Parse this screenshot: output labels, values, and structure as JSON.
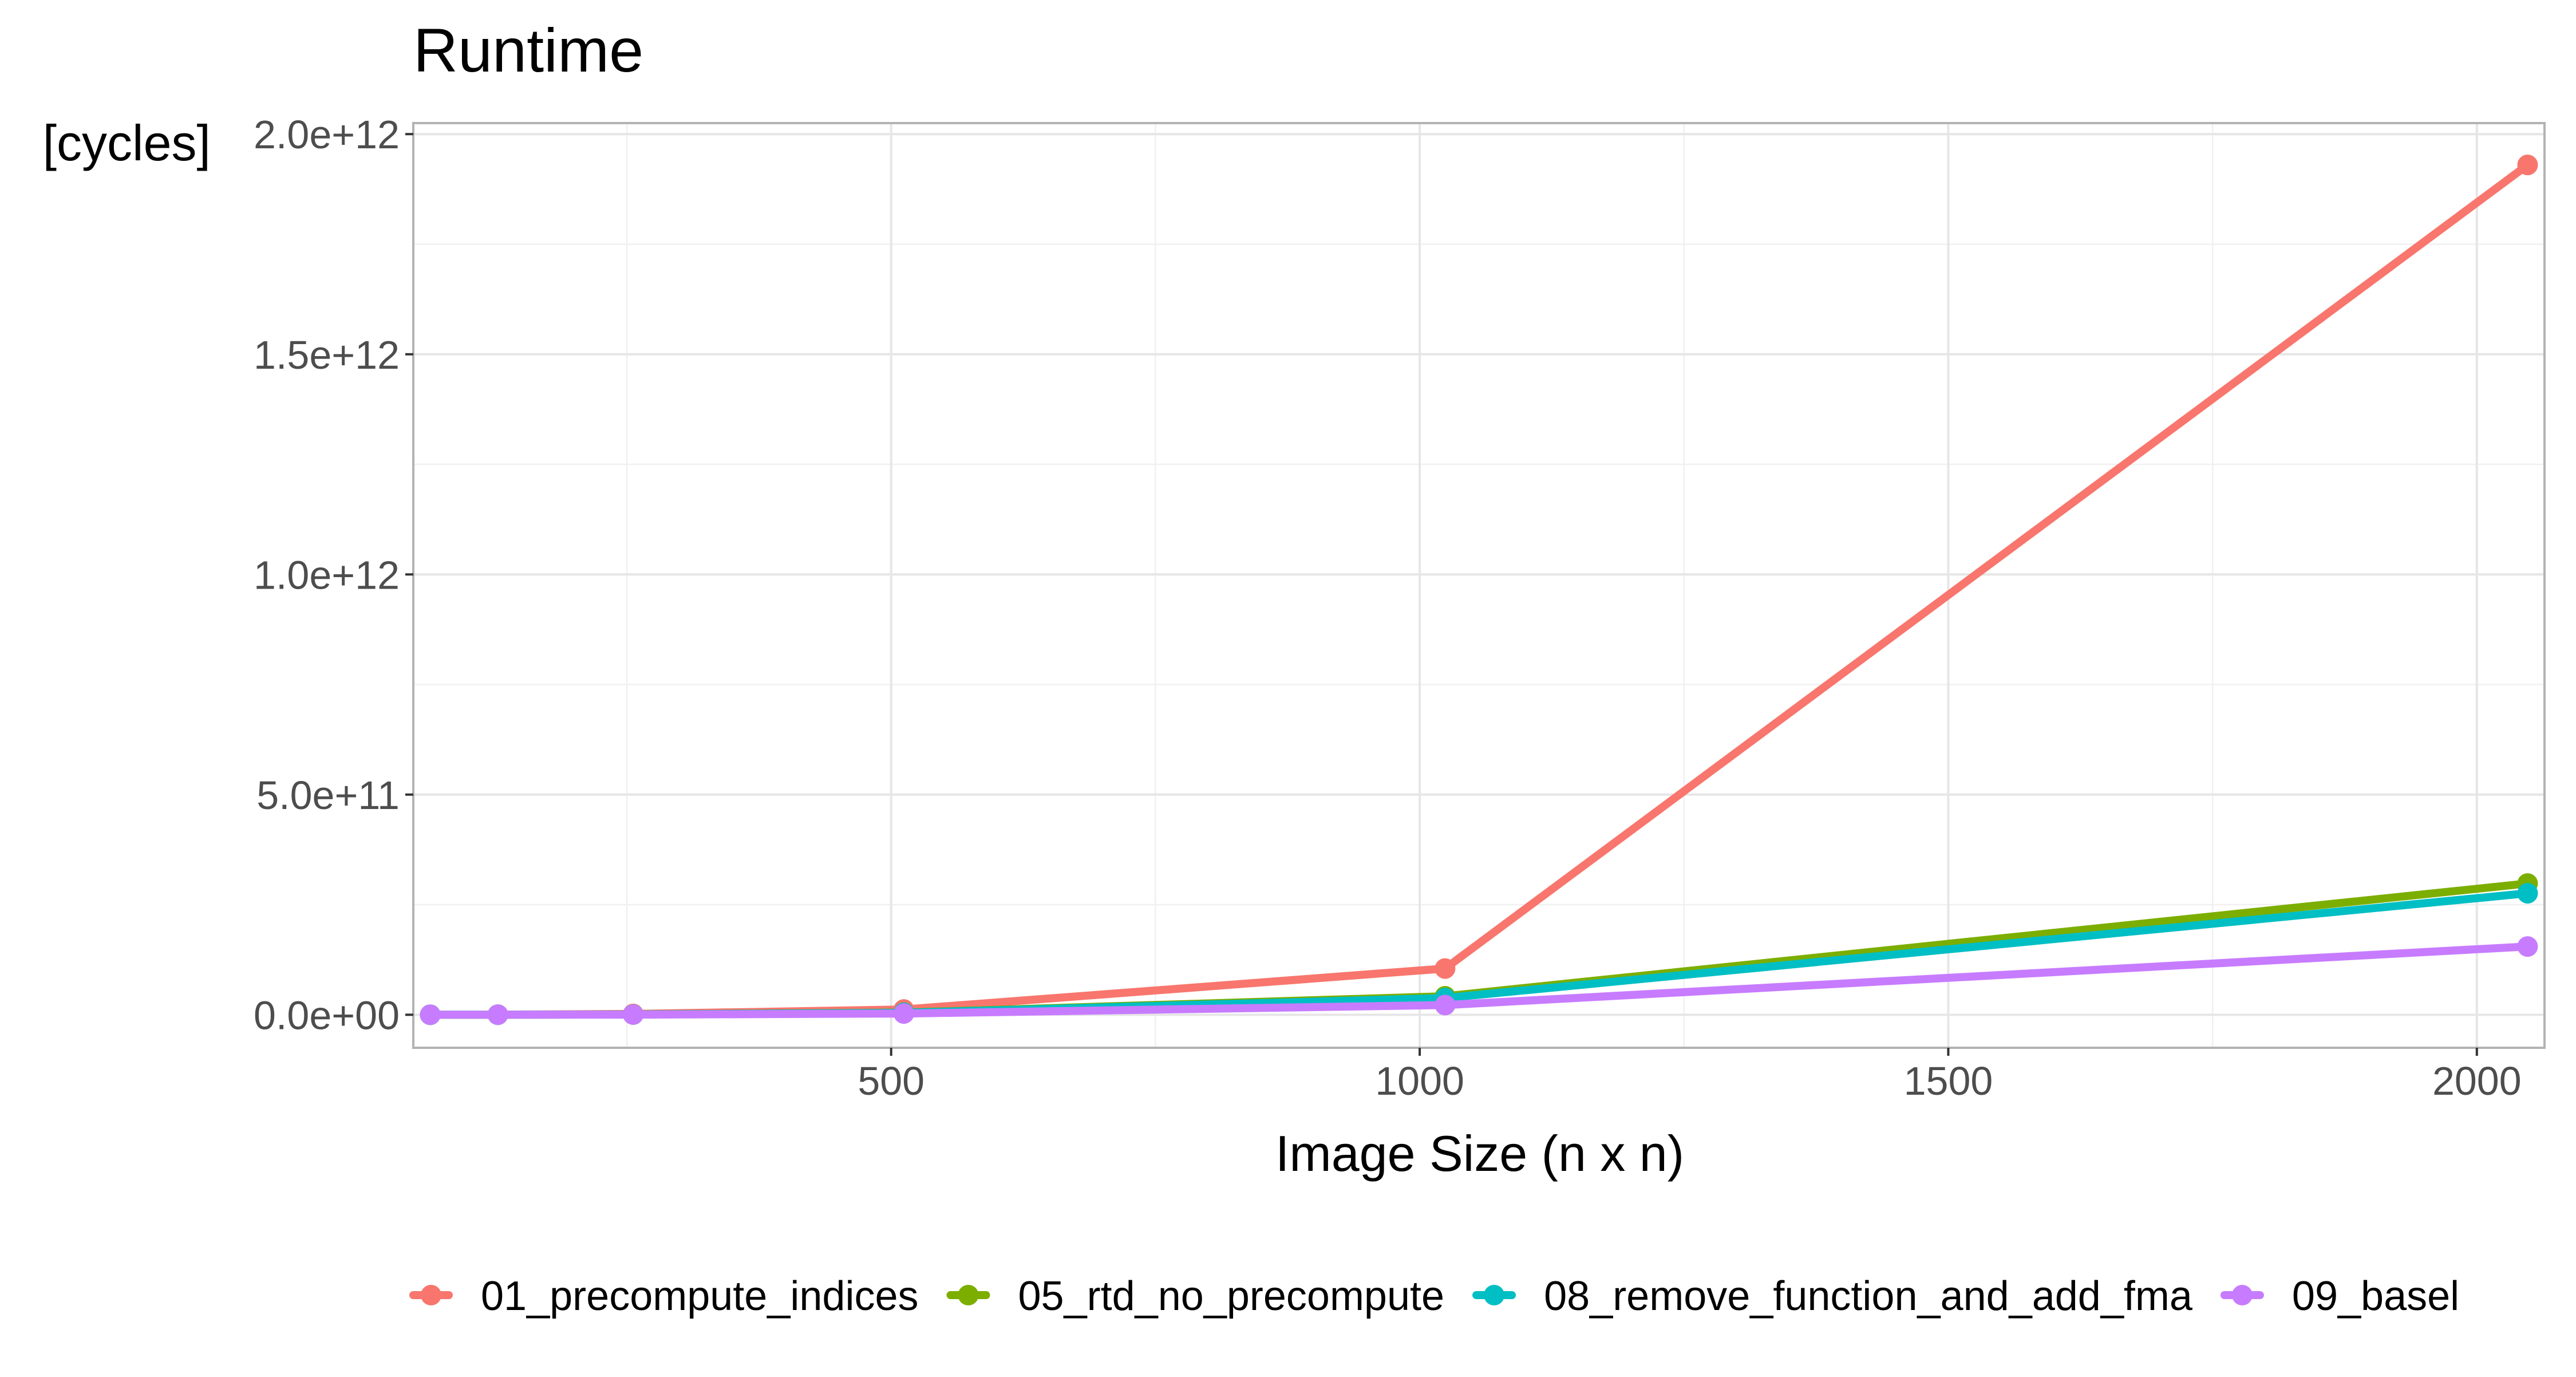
{
  "chart_data": {
    "type": "line",
    "title": "Runtime",
    "ylabel": "[cycles]",
    "xlabel": "Image Size (n x n)",
    "xlim": [
      48,
      2064
    ],
    "ylim": [
      -75000000000,
      2025000000000
    ],
    "x_ticks": [
      500,
      1000,
      1500,
      2000
    ],
    "x_tick_labels": [
      "500",
      "1000",
      "1500",
      "2000"
    ],
    "y_ticks": [
      0,
      500000000000,
      1000000000000,
      1500000000000,
      2000000000000
    ],
    "y_tick_labels": [
      "0.0e+00",
      "5.0e+11",
      "1.0e+12",
      "1.5e+12",
      "2.0e+12"
    ],
    "grid": true,
    "legend_position": "bottom",
    "series": [
      {
        "name": "01_precompute_indices",
        "color": "#F8766D",
        "x": [
          64,
          128,
          256,
          512,
          1024,
          2048
        ],
        "y": [
          30000000,
          250000000,
          1800000000,
          12000000000,
          105000000000,
          1930000000000
        ]
      },
      {
        "name": "05_rtd_no_precompute",
        "color": "#7CAE00",
        "x": [
          64,
          128,
          256,
          512,
          1024,
          2048
        ],
        "y": [
          10000000,
          70000000,
          600000000,
          5000000000,
          42000000000,
          298000000000
        ]
      },
      {
        "name": "08_remove_function_and_add_fma",
        "color": "#00BFC4",
        "x": [
          64,
          128,
          256,
          512,
          1024,
          2048
        ],
        "y": [
          10000000,
          65000000,
          550000000,
          4500000000,
          38000000000,
          276000000000
        ]
      },
      {
        "name": "09_basel",
        "color": "#C77CFF",
        "x": [
          64,
          128,
          256,
          512,
          1024,
          2048
        ],
        "y": [
          5000000,
          40000000,
          350000000,
          2800000000,
          22000000000,
          155000000000
        ]
      }
    ]
  }
}
